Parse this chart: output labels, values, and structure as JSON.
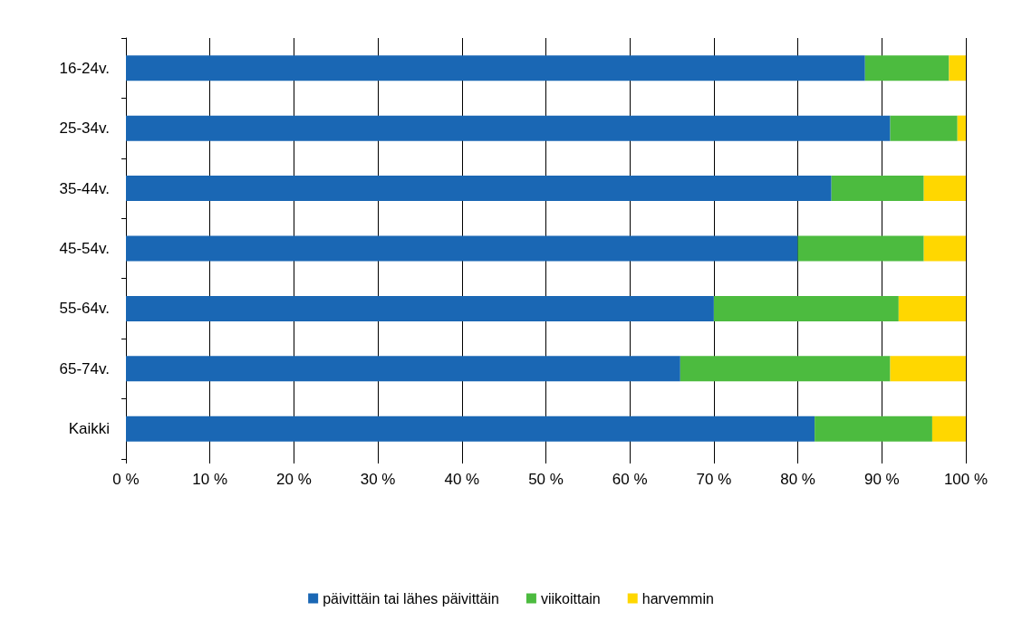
{
  "chart_data": {
    "type": "bar",
    "orientation": "horizontal",
    "stacked": true,
    "categories": [
      "16-24v.",
      "25-34v.",
      "35-44v.",
      "45-54v.",
      "55-64v.",
      "65-74v.",
      "Kaikki"
    ],
    "series": [
      {
        "name": "päivittäin tai lähes päivittäin",
        "color": "#1a67b4",
        "values": [
          88,
          91,
          84,
          80,
          70,
          66,
          82
        ]
      },
      {
        "name": "viikoittain",
        "color": "#4cbb3f",
        "values": [
          10,
          8,
          11,
          15,
          22,
          25,
          14
        ]
      },
      {
        "name": "harvemmin",
        "color": "#ffd700",
        "values": [
          2,
          1,
          5,
          5,
          8,
          9,
          4
        ]
      }
    ],
    "xlim": [
      0,
      100
    ],
    "xticks": [
      {
        "value": 0,
        "label": "0 %"
      },
      {
        "value": 10,
        "label": "10 %"
      },
      {
        "value": 20,
        "label": "20 %"
      },
      {
        "value": 30,
        "label": "30 %"
      },
      {
        "value": 40,
        "label": "40 %"
      },
      {
        "value": 50,
        "label": "50 %"
      },
      {
        "value": 60,
        "label": "60 %"
      },
      {
        "value": 70,
        "label": "70 %"
      },
      {
        "value": 80,
        "label": "80 %"
      },
      {
        "value": 90,
        "label": "90 %"
      },
      {
        "value": 100,
        "label": "100 %"
      }
    ],
    "grid": "x",
    "legend": "bottom"
  }
}
